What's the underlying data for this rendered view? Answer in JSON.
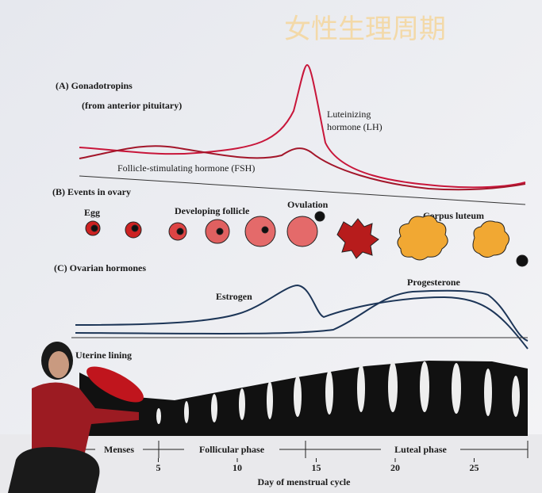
{
  "title": "女性生理周期",
  "panel_a": {
    "label": "(A) Gonadotropins",
    "sublabel": "(from anterior pituitary)",
    "lh_label_1": "Luteinizing",
    "lh_label_2": "hormone (LH)",
    "fsh_label": "Follicle-stimulating hormone (FSH)"
  },
  "panel_b": {
    "label": "(B) Events in ovary",
    "stages": [
      "Egg",
      "Developing follicle",
      "Ovulation",
      "Corpus luteum"
    ]
  },
  "panel_c": {
    "label": "(C) Ovarian hormones",
    "estrogen": "Estrogen",
    "progesterone": "Progesterone"
  },
  "panel_d": {
    "label": "Uterine lining"
  },
  "phases": [
    "Menses",
    "Follicular phase",
    "Luteal phase"
  ],
  "x_axis": {
    "ticks": [
      5,
      10,
      15,
      20,
      25
    ],
    "label": "Day of menstrual cycle"
  }
}
